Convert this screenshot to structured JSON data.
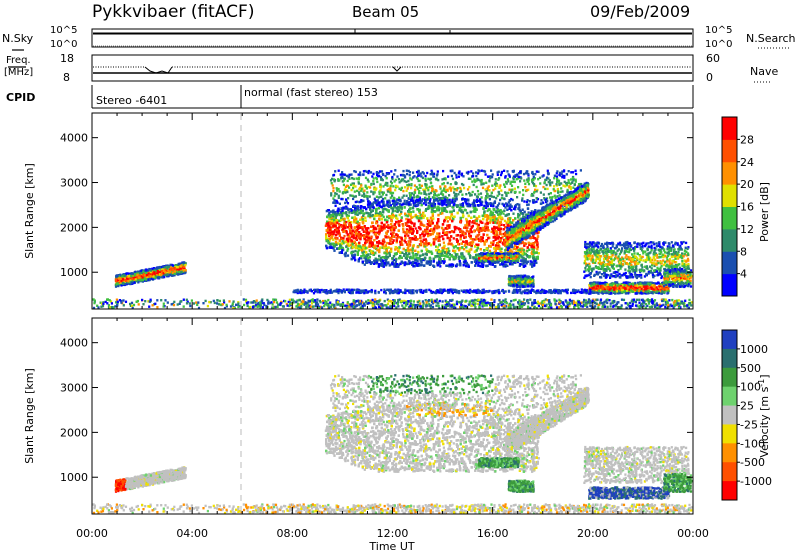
{
  "header": {
    "station": "Pykkvibaer (fitACF)",
    "beam": "Beam 05",
    "date": "09/Feb/2009"
  },
  "strips": {
    "nsky_label": "N.Sky",
    "nsky_ticks": [
      "10^5",
      "10^0"
    ],
    "nsearch_label": "N.Search",
    "freq_label_1": "Freq.",
    "freq_label_2": "[MHz]",
    "freq_ticks": [
      "18",
      "8"
    ],
    "nave_label": "Nave",
    "nave_ticks": [
      "60",
      "0"
    ],
    "cpid_label": "CPID",
    "cpid_1": "Stereo -6401",
    "cpid_2": "normal (fast stereo) 153"
  },
  "chart_data": [
    {
      "type": "heatmap",
      "name": "power",
      "ylabel": "Slant Range [km]",
      "xlabel": "",
      "x_ticks": [
        "00:00",
        "04:00",
        "08:00",
        "12:00",
        "16:00",
        "20:00",
        "00:00"
      ],
      "x_range_hours": [
        0,
        24
      ],
      "y_ticks": [
        1000,
        2000,
        3000,
        4000
      ],
      "y_range_km": [
        180,
        4550
      ],
      "colorbar": {
        "label": "Power [dB]",
        "tick_labels": [
          "4",
          "8",
          "12",
          "16",
          "20",
          "24",
          "28"
        ],
        "colors": [
          "#0000ff",
          "#1a4fb0",
          "#2e8a6a",
          "#40c040",
          "#e0e000",
          "#ff9000",
          "#ff5000",
          "#ff0000"
        ]
      },
      "regions": [
        {
          "t0": 0.9,
          "t1": 3.7,
          "r0": 750,
          "r1": 1250,
          "level": "mixed"
        },
        {
          "t0": 9.3,
          "t1": 19.8,
          "r0": 1100,
          "r1": 3300,
          "level": "mixed"
        },
        {
          "t0": 19.5,
          "t1": 23.8,
          "r0": 450,
          "r1": 1700,
          "level": "mixed"
        }
      ]
    },
    {
      "type": "heatmap",
      "name": "velocity",
      "ylabel": "Slant Range [km]",
      "xlabel": "Time UT",
      "x_ticks": [
        "00:00",
        "04:00",
        "08:00",
        "12:00",
        "16:00",
        "20:00",
        "00:00"
      ],
      "x_range_hours": [
        0,
        24
      ],
      "y_ticks": [
        1000,
        2000,
        3000,
        4000
      ],
      "y_range_km": [
        180,
        4550
      ],
      "colorbar": {
        "label": "Velocity [m s^-1]",
        "tick_labels": [
          "1000",
          "500",
          "100",
          "25",
          "-25",
          "-100",
          "-500",
          "-1000"
        ],
        "colors": [
          "#2040c0",
          "#2a6f6f",
          "#3c9b3c",
          "#6ed26e",
          "#c0c0c0",
          "#f0e000",
          "#ff9000",
          "#ff5000",
          "#ff0000"
        ]
      }
    }
  ]
}
